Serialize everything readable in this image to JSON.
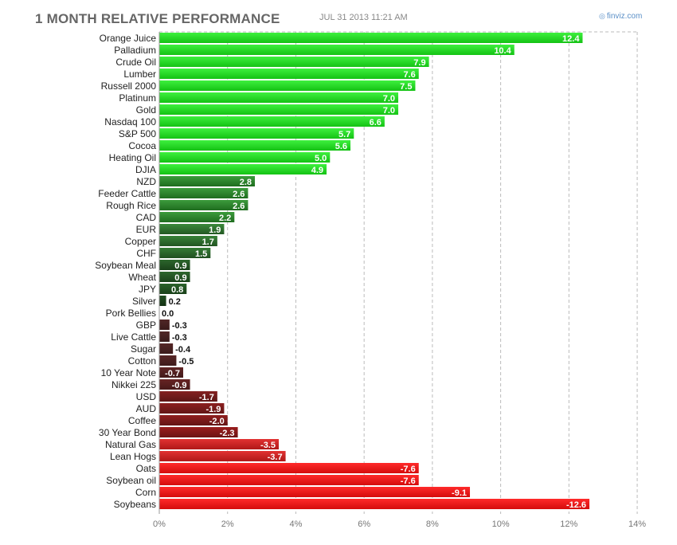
{
  "header": {
    "title": "1 MONTH RELATIVE PERFORMANCE",
    "timestamp": "JUL 31 2013 11:21 AM",
    "brand": "finviz.com",
    "brand_icon": "finviz-logo-icon"
  },
  "colors": {
    "positive_strong": "#1fd91f",
    "negative_strong": "#ee1111",
    "grid": "#bbbbbb"
  },
  "chart_data": {
    "type": "bar",
    "orientation": "horizontal",
    "categories": [
      "Orange Juice",
      "Palladium",
      "Crude Oil",
      "Lumber",
      "Russell 2000",
      "Platinum",
      "Gold",
      "Nasdaq 100",
      "S&P 500",
      "Cocoa",
      "Heating Oil",
      "DJIA",
      "NZD",
      "Feeder Cattle",
      "Rough Rice",
      "CAD",
      "EUR",
      "Copper",
      "CHF",
      "Soybean Meal",
      "Wheat",
      "JPY",
      "Silver",
      "Pork Bellies",
      "GBP",
      "Live Cattle",
      "Sugar",
      "Cotton",
      "10 Year Note",
      "Nikkei 225",
      "USD",
      "AUD",
      "Coffee",
      "30 Year Bond",
      "Natural Gas",
      "Lean Hogs",
      "Oats",
      "Soybean oil",
      "Corn",
      "Soybeans"
    ],
    "values": [
      12.4,
      10.4,
      7.9,
      7.6,
      7.5,
      7.0,
      7.0,
      6.6,
      5.7,
      5.6,
      5.0,
      4.9,
      2.8,
      2.6,
      2.6,
      2.2,
      1.9,
      1.7,
      1.5,
      0.9,
      0.9,
      0.8,
      0.2,
      0.0,
      -0.3,
      -0.3,
      -0.4,
      -0.5,
      -0.7,
      -0.9,
      -1.7,
      -1.9,
      -2.0,
      -2.3,
      -3.5,
      -3.7,
      -7.6,
      -7.6,
      -9.1,
      -12.6
    ],
    "value_labels": [
      "12.4",
      "10.4",
      "7.9",
      "7.6",
      "7.5",
      "7.0",
      "7.0",
      "6.6",
      "5.7",
      "5.6",
      "5.0",
      "4.9",
      "2.8",
      "2.6",
      "2.6",
      "2.2",
      "1.9",
      "1.7",
      "1.5",
      "0.9",
      "0.9",
      "0.8",
      "0.2",
      "0.0",
      "-0.3",
      "-0.3",
      "-0.4",
      "-0.5",
      "-0.7",
      "-0.9",
      "-1.7",
      "-1.9",
      "-2.0",
      "-2.3",
      "-3.5",
      "-3.7",
      "-7.6",
      "-7.6",
      "-9.1",
      "-12.6"
    ],
    "bar_length": "absolute value",
    "xlim": [
      0,
      14
    ],
    "xticks": [
      0,
      2,
      4,
      6,
      8,
      10,
      12,
      14
    ],
    "xtick_labels": [
      "0%",
      "2%",
      "4%",
      "6%",
      "8%",
      "10%",
      "12%",
      "14%"
    ],
    "grid": "vertical dashed",
    "legend": "none"
  }
}
